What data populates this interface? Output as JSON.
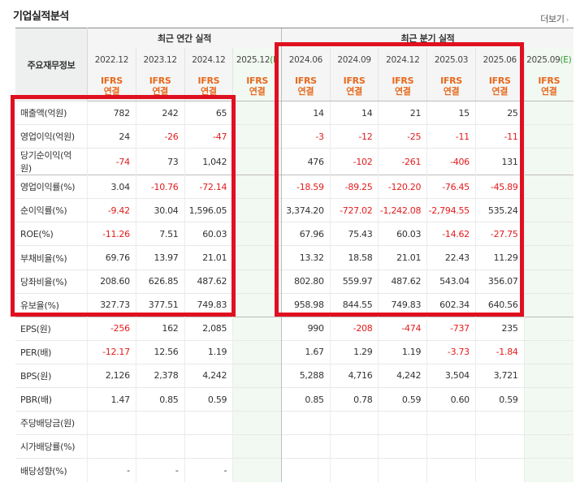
{
  "header": {
    "title": "기업실적분석",
    "more_label": "더보기",
    "more_chevron": "›"
  },
  "table": {
    "corner_label": "주요재무정보",
    "annual_group_label": "최근 연간 실적",
    "quarter_group_label": "최근 분기 실적",
    "annual_periods": [
      "2022.12",
      "2023.12",
      "2024.12"
    ],
    "annual_estimate": {
      "period": "2025.12",
      "mark": "(E)",
      "shown": "(E"
    },
    "quarter_periods": [
      "2024.06",
      "2024.09",
      "2024.12",
      "2025.03",
      "2025.06"
    ],
    "quarter_estimate": {
      "period": "2025.09",
      "mark": "(E)"
    },
    "ifrs_line1": "IFRS",
    "ifrs_line2": "연결",
    "rows": [
      {
        "label": "매출액(억원)",
        "annual": [
          "782",
          "242",
          "65"
        ],
        "quarter": [
          "14",
          "14",
          "21",
          "15",
          "25"
        ]
      },
      {
        "label": "영업이익(억원)",
        "annual": [
          "24",
          "-26",
          "-47"
        ],
        "quarter": [
          "-3",
          "-12",
          "-25",
          "-11",
          "-11"
        ]
      },
      {
        "label": "당기순이익(억원)",
        "annual": [
          "-74",
          "73",
          "1,042"
        ],
        "quarter": [
          "476",
          "-102",
          "-261",
          "-406",
          "131"
        ]
      },
      {
        "label": "영업이익률(%)",
        "annual": [
          "3.04",
          "-10.76",
          "-72.14"
        ],
        "quarter": [
          "-18.59",
          "-89.25",
          "-120.20",
          "-76.45",
          "-45.89"
        ]
      },
      {
        "label": "순이익률(%)",
        "annual": [
          "-9.42",
          "30.04",
          "1,596.05"
        ],
        "quarter": [
          "3,374.20",
          "-727.02",
          "-1,242.08",
          "-2,794.55",
          "535.24"
        ]
      },
      {
        "label": "ROE(%)",
        "annual": [
          "-11.26",
          "7.51",
          "60.03"
        ],
        "quarter": [
          "67.96",
          "75.43",
          "60.03",
          "-14.62",
          "-27.75"
        ]
      },
      {
        "label": "부채비율(%)",
        "annual": [
          "69.76",
          "13.97",
          "21.01"
        ],
        "quarter": [
          "13.32",
          "18.58",
          "21.01",
          "22.43",
          "11.29"
        ]
      },
      {
        "label": "당좌비율(%)",
        "annual": [
          "208.60",
          "626.85",
          "487.62"
        ],
        "quarter": [
          "802.80",
          "559.97",
          "487.62",
          "543.04",
          "356.07"
        ]
      },
      {
        "label": "유보율(%)",
        "annual": [
          "327.73",
          "377.51",
          "749.83"
        ],
        "quarter": [
          "958.98",
          "844.55",
          "749.83",
          "602.34",
          "640.56"
        ]
      },
      {
        "label": "EPS(원)",
        "annual": [
          "-256",
          "162",
          "2,085"
        ],
        "quarter": [
          "990",
          "-208",
          "-474",
          "-737",
          "235"
        ]
      },
      {
        "label": "PER(배)",
        "annual": [
          "-12.17",
          "12.56",
          "1.19"
        ],
        "quarter": [
          "1.67",
          "1.29",
          "1.19",
          "-3.73",
          "-1.84"
        ]
      },
      {
        "label": "BPS(원)",
        "annual": [
          "2,126",
          "2,378",
          "4,242"
        ],
        "quarter": [
          "5,288",
          "4,716",
          "4,242",
          "3,504",
          "3,721"
        ]
      },
      {
        "label": "PBR(배)",
        "annual": [
          "1.47",
          "0.85",
          "0.59"
        ],
        "quarter": [
          "0.85",
          "0.78",
          "0.59",
          "0.60",
          "0.59"
        ]
      },
      {
        "label": "주당배당금(원)",
        "annual": [
          "",
          "",
          ""
        ],
        "quarter": [
          "",
          "",
          "",
          "",
          ""
        ]
      },
      {
        "label": "시가배당률(%)",
        "annual": [
          "",
          "",
          ""
        ],
        "quarter": [
          "",
          "",
          "",
          "",
          ""
        ]
      },
      {
        "label": "배당성향(%)",
        "annual": [
          "-",
          "-",
          "-"
        ],
        "quarter": [
          "",
          "",
          "",
          "",
          ""
        ]
      }
    ]
  },
  "highlight_color": "#e01020"
}
